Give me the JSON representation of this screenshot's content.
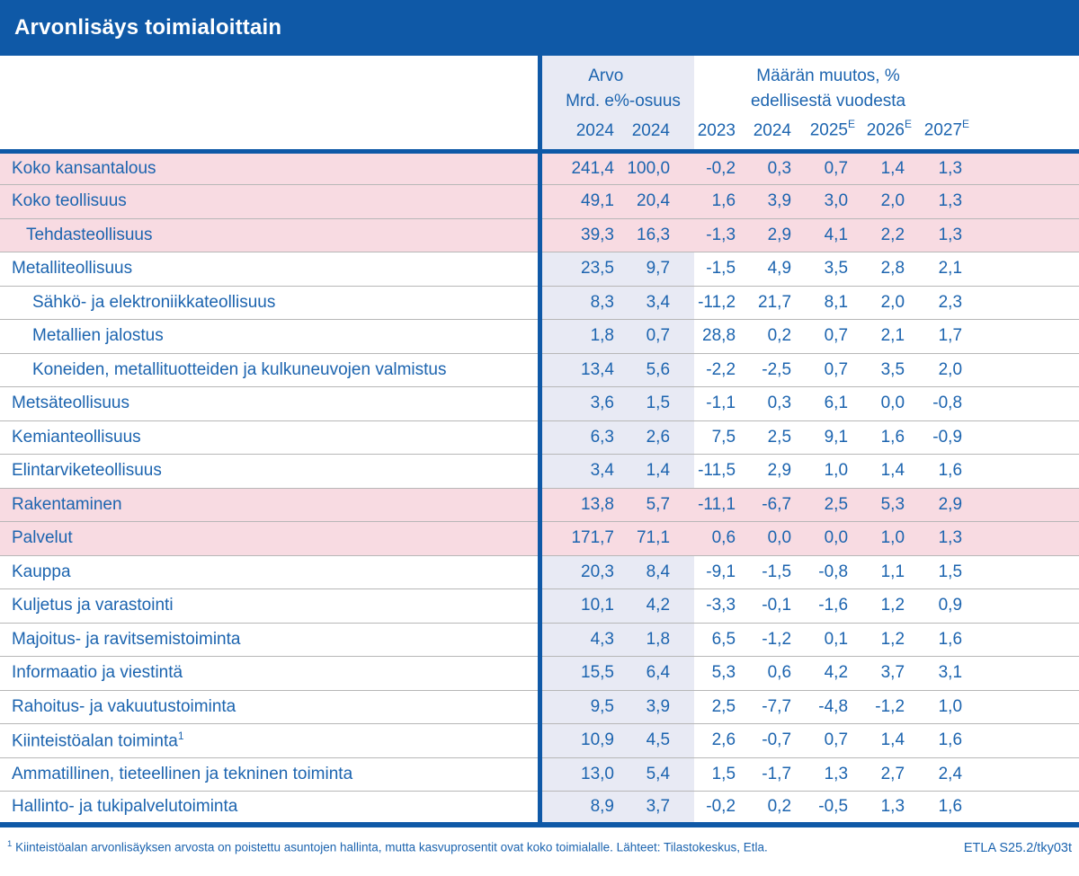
{
  "colors": {
    "accent_blue": "#0f59a7",
    "text_blue": "#1c64af",
    "highlight_pink": "#f8dbe2",
    "lavender": "#e8eaf4",
    "separator": "#b7b7b7"
  },
  "chart_data": {
    "type": "table",
    "title": "Arvonlisäys toimialoittain",
    "column_groups": [
      {
        "label": "Arvo",
        "sublabel": "",
        "columns": [
          {
            "unit": "Mrd. e",
            "year": "2024",
            "sup": ""
          },
          {
            "unit": "%-osuus",
            "year": "2024",
            "sup": ""
          }
        ]
      },
      {
        "label": "Määrän muutos, %",
        "sublabel": "edellisestä vuodesta",
        "columns": [
          {
            "unit": "",
            "year": "2023",
            "sup": ""
          },
          {
            "unit": "",
            "year": "2024",
            "sup": ""
          },
          {
            "unit": "",
            "year": "2025",
            "sup": "E"
          },
          {
            "unit": "",
            "year": "2026",
            "sup": "E"
          },
          {
            "unit": "",
            "year": "2027",
            "sup": "E"
          }
        ]
      }
    ],
    "rows": [
      {
        "label": "Koko kansantalous",
        "indent": 0,
        "highlight": true,
        "sup": "",
        "values": [
          "241,4",
          "100,0",
          "-0,2",
          "0,3",
          "0,7",
          "1,4",
          "1,3"
        ]
      },
      {
        "label": "Koko teollisuus",
        "indent": 0,
        "highlight": true,
        "sup": "",
        "values": [
          "49,1",
          "20,4",
          "1,6",
          "3,9",
          "3,0",
          "2,0",
          "1,3"
        ]
      },
      {
        "label": "Tehdasteollisuus",
        "indent": 1,
        "highlight": true,
        "sup": "",
        "values": [
          "39,3",
          "16,3",
          "-1,3",
          "2,9",
          "4,1",
          "2,2",
          "1,3"
        ]
      },
      {
        "label": "Metalliteollisuus",
        "indent": 0,
        "highlight": false,
        "sup": "",
        "values": [
          "23,5",
          "9,7",
          "-1,5",
          "4,9",
          "3,5",
          "2,8",
          "2,1"
        ]
      },
      {
        "label": "Sähkö- ja elektroniikkateollisuus",
        "indent": 2,
        "highlight": false,
        "sup": "",
        "values": [
          "8,3",
          "3,4",
          "-11,2",
          "21,7",
          "8,1",
          "2,0",
          "2,3"
        ]
      },
      {
        "label": "Metallien jalostus",
        "indent": 2,
        "highlight": false,
        "sup": "",
        "values": [
          "1,8",
          "0,7",
          "28,8",
          "0,2",
          "0,7",
          "2,1",
          "1,7"
        ]
      },
      {
        "label": "Koneiden, metallituotteiden ja kulkuneuvojen valmistus",
        "indent": 2,
        "highlight": false,
        "sup": "",
        "values": [
          "13,4",
          "5,6",
          "-2,2",
          "-2,5",
          "0,7",
          "3,5",
          "2,0"
        ]
      },
      {
        "label": "Metsäteollisuus",
        "indent": 0,
        "highlight": false,
        "sup": "",
        "values": [
          "3,6",
          "1,5",
          "-1,1",
          "0,3",
          "6,1",
          "0,0",
          "-0,8"
        ]
      },
      {
        "label": "Kemianteollisuus",
        "indent": 0,
        "highlight": false,
        "sup": "",
        "values": [
          "6,3",
          "2,6",
          "7,5",
          "2,5",
          "9,1",
          "1,6",
          "-0,9"
        ]
      },
      {
        "label": "Elintarviketeollisuus",
        "indent": 0,
        "highlight": false,
        "sup": "",
        "values": [
          "3,4",
          "1,4",
          "-11,5",
          "2,9",
          "1,0",
          "1,4",
          "1,6"
        ]
      },
      {
        "label": "Rakentaminen",
        "indent": 0,
        "highlight": true,
        "sup": "",
        "values": [
          "13,8",
          "5,7",
          "-11,1",
          "-6,7",
          "2,5",
          "5,3",
          "2,9"
        ]
      },
      {
        "label": "Palvelut",
        "indent": 0,
        "highlight": true,
        "sup": "",
        "values": [
          "171,7",
          "71,1",
          "0,6",
          "0,0",
          "0,0",
          "1,0",
          "1,3"
        ]
      },
      {
        "label": "Kauppa",
        "indent": 0,
        "highlight": false,
        "sup": "",
        "values": [
          "20,3",
          "8,4",
          "-9,1",
          "-1,5",
          "-0,8",
          "1,1",
          "1,5"
        ]
      },
      {
        "label": "Kuljetus ja varastointi",
        "indent": 0,
        "highlight": false,
        "sup": "",
        "values": [
          "10,1",
          "4,2",
          "-3,3",
          "-0,1",
          "-1,6",
          "1,2",
          "0,9"
        ]
      },
      {
        "label": "Majoitus- ja ravitsemistoiminta",
        "indent": 0,
        "highlight": false,
        "sup": "",
        "values": [
          "4,3",
          "1,8",
          "6,5",
          "-1,2",
          "0,1",
          "1,2",
          "1,6"
        ]
      },
      {
        "label": "Informaatio ja viestintä",
        "indent": 0,
        "highlight": false,
        "sup": "",
        "values": [
          "15,5",
          "6,4",
          "5,3",
          "0,6",
          "4,2",
          "3,7",
          "3,1"
        ]
      },
      {
        "label": "Rahoitus- ja vakuutustoiminta",
        "indent": 0,
        "highlight": false,
        "sup": "",
        "values": [
          "9,5",
          "3,9",
          "2,5",
          "-7,7",
          "-4,8",
          "-1,2",
          "1,0"
        ]
      },
      {
        "label": "Kiinteistöalan toiminta",
        "indent": 0,
        "highlight": false,
        "sup": "1",
        "values": [
          "10,9",
          "4,5",
          "2,6",
          "-0,7",
          "0,7",
          "1,4",
          "1,6"
        ]
      },
      {
        "label": "Ammatillinen, tieteellinen ja tekninen toiminta",
        "indent": 0,
        "highlight": false,
        "sup": "",
        "values": [
          "13,0",
          "5,4",
          "1,5",
          "-1,7",
          "1,3",
          "2,7",
          "2,4"
        ]
      },
      {
        "label": "Hallinto- ja tukipalvelutoiminta",
        "indent": 0,
        "highlight": false,
        "sup": "",
        "values": [
          "8,9",
          "3,7",
          "-0,2",
          "0,2",
          "-0,5",
          "1,3",
          "1,6"
        ]
      }
    ]
  },
  "footer": {
    "note_marker": "1",
    "note": "Kiinteistöalan arvonlisäyksen arvosta on poistettu asuntojen hallinta, mutta kasvuprosentit ovat koko toimialalle. Lähteet: Tilastokeskus, Etla.",
    "code": "ETLA S25.2/tky03t"
  }
}
